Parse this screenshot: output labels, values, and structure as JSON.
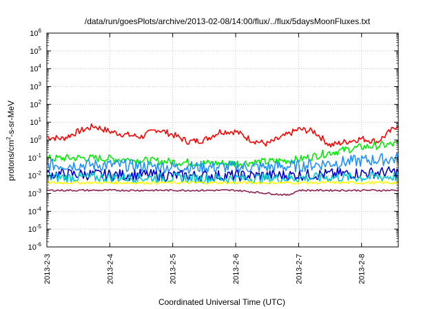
{
  "chart_data": {
    "type": "line",
    "title": "/data/run/goesPlots/archive/2013-02-08/14:00/flux/../flux/5daysMoonFluxes.txt",
    "xlabel": "Coordinated Universal Time (UTC)",
    "ylabel": {
      "prefix": "protons/cm",
      "sup": "2",
      "suffix": "-s-sr-MeV"
    },
    "y_scale": "log",
    "ylim": [
      1e-06,
      1000000.0
    ],
    "xlim": [
      "2013-02-03 00:00",
      "2013-02-08 14:00"
    ],
    "grid": true,
    "y_ticks": [
      {
        "value": 1e-06,
        "base": "10",
        "exp": "-6"
      },
      {
        "value": 1e-05,
        "base": "10",
        "exp": "-5"
      },
      {
        "value": 0.0001,
        "base": "10",
        "exp": "-4"
      },
      {
        "value": 0.001,
        "base": "10",
        "exp": "-3"
      },
      {
        "value": 0.01,
        "base": "10",
        "exp": "-2"
      },
      {
        "value": 0.1,
        "base": "10",
        "exp": "-1"
      },
      {
        "value": 1.0,
        "base": "10",
        "exp": "0"
      },
      {
        "value": 10.0,
        "base": "10",
        "exp": "1"
      },
      {
        "value": 100.0,
        "base": "10",
        "exp": "2"
      },
      {
        "value": 1000.0,
        "base": "10",
        "exp": "3"
      },
      {
        "value": 10000.0,
        "base": "10",
        "exp": "4"
      },
      {
        "value": 100000.0,
        "base": "10",
        "exp": "5"
      },
      {
        "value": 1000000.0,
        "base": "10",
        "exp": "6"
      }
    ],
    "x_ticks": [
      {
        "value": "2013-02-03",
        "label": "2013-2-3"
      },
      {
        "value": "2013-02-04",
        "label": "2013-2-4"
      },
      {
        "value": "2013-02-05",
        "label": "2013-2-5"
      },
      {
        "value": "2013-02-06",
        "label": "2013-2-6"
      },
      {
        "value": "2013-02-07",
        "label": "2013-2-7"
      },
      {
        "value": "2013-02-08",
        "label": "2013-2-8"
      }
    ],
    "series": [
      {
        "color": "#ff0000",
        "x": [
          "2013-02-03 00:00",
          "2013-02-03 06:00",
          "2013-02-03 12:00",
          "2013-02-03 18:00",
          "2013-02-04 00:00",
          "2013-02-04 06:00",
          "2013-02-04 12:00",
          "2013-02-04 18:00",
          "2013-02-05 00:00",
          "2013-02-05 06:00",
          "2013-02-05 12:00",
          "2013-02-05 18:00",
          "2013-02-06 00:00",
          "2013-02-06 06:00",
          "2013-02-06 12:00",
          "2013-02-06 18:00",
          "2013-02-07 00:00",
          "2013-02-07 06:00",
          "2013-02-07 12:00",
          "2013-02-07 18:00",
          "2013-02-08 00:00",
          "2013-02-08 06:00",
          "2013-02-08 12:00",
          "2013-02-08 14:00"
        ],
        "values": [
          1.5,
          1.2,
          3.0,
          6.0,
          3.0,
          2.0,
          1.5,
          4.0,
          2.0,
          0.8,
          1.0,
          3.0,
          3.0,
          1.0,
          0.6,
          1.5,
          4.0,
          3.0,
          0.5,
          0.8,
          1.2,
          0.8,
          4.0,
          8.0
        ]
      },
      {
        "color": "#00ee00",
        "x": [
          "2013-02-03 00:00",
          "2013-02-03 12:00",
          "2013-02-04 00:00",
          "2013-02-04 12:00",
          "2013-02-05 00:00",
          "2013-02-05 12:00",
          "2013-02-06 00:00",
          "2013-02-06 12:00",
          "2013-02-07 00:00",
          "2013-02-07 12:00",
          "2013-02-08 00:00",
          "2013-02-08 14:00"
        ],
        "values": [
          0.09,
          0.1,
          0.09,
          0.07,
          0.06,
          0.05,
          0.05,
          0.06,
          0.08,
          0.2,
          0.4,
          0.6
        ]
      },
      {
        "color": "#1e90ff",
        "x": [
          "2013-02-03 00:00",
          "2013-02-03 12:00",
          "2013-02-04 00:00",
          "2013-02-04 12:00",
          "2013-02-05 00:00",
          "2013-02-05 12:00",
          "2013-02-06 00:00",
          "2013-02-06 12:00",
          "2013-02-07 00:00",
          "2013-02-07 12:00",
          "2013-02-08 00:00",
          "2013-02-08 14:00"
        ],
        "values": [
          0.04,
          0.04,
          0.04,
          0.035,
          0.03,
          0.03,
          0.03,
          0.03,
          0.035,
          0.05,
          0.07,
          0.09
        ]
      },
      {
        "color": "#0000cc",
        "x": [
          "2013-02-03 00:00",
          "2013-02-03 12:00",
          "2013-02-04 00:00",
          "2013-02-04 12:00",
          "2013-02-05 00:00",
          "2013-02-05 12:00",
          "2013-02-06 00:00",
          "2013-02-06 12:00",
          "2013-02-07 00:00",
          "2013-02-07 12:00",
          "2013-02-08 00:00",
          "2013-02-08 14:00"
        ],
        "values": [
          0.012,
          0.012,
          0.011,
          0.011,
          0.01,
          0.01,
          0.01,
          0.01,
          0.011,
          0.012,
          0.014,
          0.016
        ]
      },
      {
        "color": "#00c8c8",
        "x": [
          "2013-02-03 00:00",
          "2013-02-03 12:00",
          "2013-02-04 00:00",
          "2013-02-04 12:00",
          "2013-02-05 00:00",
          "2013-02-05 12:00",
          "2013-02-06 00:00",
          "2013-02-06 12:00",
          "2013-02-07 00:00",
          "2013-02-07 12:00",
          "2013-02-08 00:00",
          "2013-02-08 14:00"
        ],
        "values": [
          0.008,
          0.008,
          0.008,
          0.0075,
          0.0075,
          0.007,
          0.007,
          0.007,
          0.0075,
          0.008,
          0.008,
          0.009
        ]
      },
      {
        "color": "#ffff00",
        "x": [
          "2013-02-03 00:00",
          "2013-02-04 00:00",
          "2013-02-05 00:00",
          "2013-02-06 00:00",
          "2013-02-07 00:00",
          "2013-02-08 00:00",
          "2013-02-08 14:00"
        ],
        "values": [
          0.004,
          0.004,
          0.004,
          0.004,
          0.004,
          0.004,
          0.004
        ]
      },
      {
        "color": "#8b2252",
        "x": [
          "2013-02-03 00:00",
          "2013-02-04 00:00",
          "2013-02-05 00:00",
          "2013-02-06 00:00",
          "2013-02-06 20:00",
          "2013-02-07 00:00",
          "2013-02-08 00:00",
          "2013-02-08 14:00"
        ],
        "values": [
          0.0015,
          0.0015,
          0.0015,
          0.0015,
          0.0008,
          0.0015,
          0.0015,
          0.0015
        ]
      }
    ]
  }
}
